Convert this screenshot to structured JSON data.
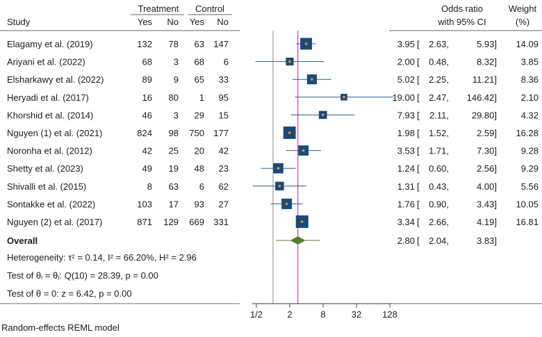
{
  "chart_data": {
    "type": "forest",
    "scale": "log2",
    "xticks": [
      "1/2",
      "2",
      "8",
      "32",
      "128"
    ],
    "xtick_values": [
      0.5,
      2,
      8,
      32,
      128
    ],
    "xlim": [
      0.5,
      128
    ],
    "null_line": 1,
    "overall_line": 2.8,
    "header": {
      "group_treatment": "Treatment",
      "group_control": "Control",
      "study": "Study",
      "yes": "Yes",
      "no": "No",
      "effect_line1": "Odds ratio",
      "effect_line2": "with 95% CI",
      "weight_line1": "Weight",
      "weight_line2": "(%)"
    },
    "studies": [
      {
        "name": "Elagamy et al. (2019)",
        "t_yes": "132",
        "t_no": "78",
        "c_yes": "63",
        "c_no": "147",
        "or": 3.95,
        "lo": 2.63,
        "hi": 5.93,
        "or_text": "3.95",
        "lo_text": "2.63,",
        "hi_text": "5.93]",
        "weight": "14.09"
      },
      {
        "name": "Ariyani et al. (2022)",
        "t_yes": "68",
        "t_no": "3",
        "c_yes": "68",
        "c_no": "6",
        "or": 2.0,
        "lo": 0.48,
        "hi": 8.32,
        "or_text": "2.00",
        "lo_text": "0.48,",
        "hi_text": "8.32]",
        "weight": "3.85"
      },
      {
        "name": "Elsharkawy et al. (2022)",
        "t_yes": "89",
        "t_no": "9",
        "c_yes": "65",
        "c_no": "33",
        "or": 5.02,
        "lo": 2.25,
        "hi": 11.21,
        "or_text": "5.02",
        "lo_text": "2.25,",
        "hi_text": "11.21]",
        "weight": "8.36"
      },
      {
        "name": "Heryadi et al. (2017)",
        "t_yes": "16",
        "t_no": "80",
        "c_yes": "1",
        "c_no": "95",
        "or": 19.0,
        "lo": 2.47,
        "hi": 146.42,
        "or_text": "19.00",
        "lo_text": "2.47,",
        "hi_text": "146.42]",
        "weight": "2.10"
      },
      {
        "name": "Khorshid et al. (2014)",
        "t_yes": "46",
        "t_no": "3",
        "c_yes": "29",
        "c_no": "15",
        "or": 7.93,
        "lo": 2.11,
        "hi": 29.8,
        "or_text": "7.93",
        "lo_text": "2.11,",
        "hi_text": "29.80]",
        "weight": "4.32"
      },
      {
        "name": "Nguyen (1) et al. (2021)",
        "t_yes": "824",
        "t_no": "98",
        "c_yes": "750",
        "c_no": "177",
        "or": 1.98,
        "lo": 1.52,
        "hi": 2.59,
        "or_text": "1.98",
        "lo_text": "1.52,",
        "hi_text": "2.59]",
        "weight": "16.28"
      },
      {
        "name": "Noronha et al. (2012)",
        "t_yes": "42",
        "t_no": "25",
        "c_yes": "20",
        "c_no": "42",
        "or": 3.53,
        "lo": 1.71,
        "hi": 7.3,
        "or_text": "3.53",
        "lo_text": "1.71,",
        "hi_text": "7.30]",
        "weight": "9.28"
      },
      {
        "name": "Shetty et al. (2023)",
        "t_yes": "49",
        "t_no": "19",
        "c_yes": "48",
        "c_no": "23",
        "or": 1.24,
        "lo": 0.6,
        "hi": 2.56,
        "or_text": "1.24",
        "lo_text": "0.60,",
        "hi_text": "2.56]",
        "weight": "9.29"
      },
      {
        "name": "Shivalli et al. (2015)",
        "t_yes": "8",
        "t_no": "63",
        "c_yes": "6",
        "c_no": "62",
        "or": 1.31,
        "lo": 0.43,
        "hi": 4.0,
        "or_text": "1.31",
        "lo_text": "0.43,",
        "hi_text": "4.00]",
        "weight": "5.56"
      },
      {
        "name": "Sontakke et al. (2022)",
        "t_yes": "103",
        "t_no": "17",
        "c_yes": "93",
        "c_no": "27",
        "or": 1.76,
        "lo": 0.9,
        "hi": 3.43,
        "or_text": "1.76",
        "lo_text": "0.90,",
        "hi_text": "3.43]",
        "weight": "10.05"
      },
      {
        "name": "Nguyen (2) et al. (2017)",
        "t_yes": "871",
        "t_no": "129",
        "c_yes": "669",
        "c_no": "331",
        "or": 3.34,
        "lo": 2.66,
        "hi": 4.19,
        "or_text": "3.34",
        "lo_text": "2.66,",
        "hi_text": "4.19]",
        "weight": "16.81"
      }
    ],
    "overall": {
      "label": "Overall",
      "or": 2.8,
      "lo": 2.04,
      "hi": 3.83,
      "or_text": "2.80",
      "lo_text": "2.04,",
      "hi_text": "3.83]",
      "pi_lo": 1.12,
      "pi_hi": 7.0
    },
    "stats": {
      "heterogeneity": "Heterogeneity: τ² = 0.14, I² = 66.20%, H² = 2.96",
      "test_theta_i": "Test of θᵢ = θⱼ: Q(10) = 28.39, p = 0.00",
      "test_theta_0": "Test of θ = 0: z = 6.42, p = 0.00"
    },
    "note": "Random-effects REML model",
    "colors": {
      "box": "#1a4a7a",
      "dot": "#e08a2c",
      "ci_line": "#2a5c8c",
      "diamond": "#5a7a2a",
      "overall_line": "#c040c0",
      "null_line": "#888888",
      "axis": "#333333"
    }
  }
}
